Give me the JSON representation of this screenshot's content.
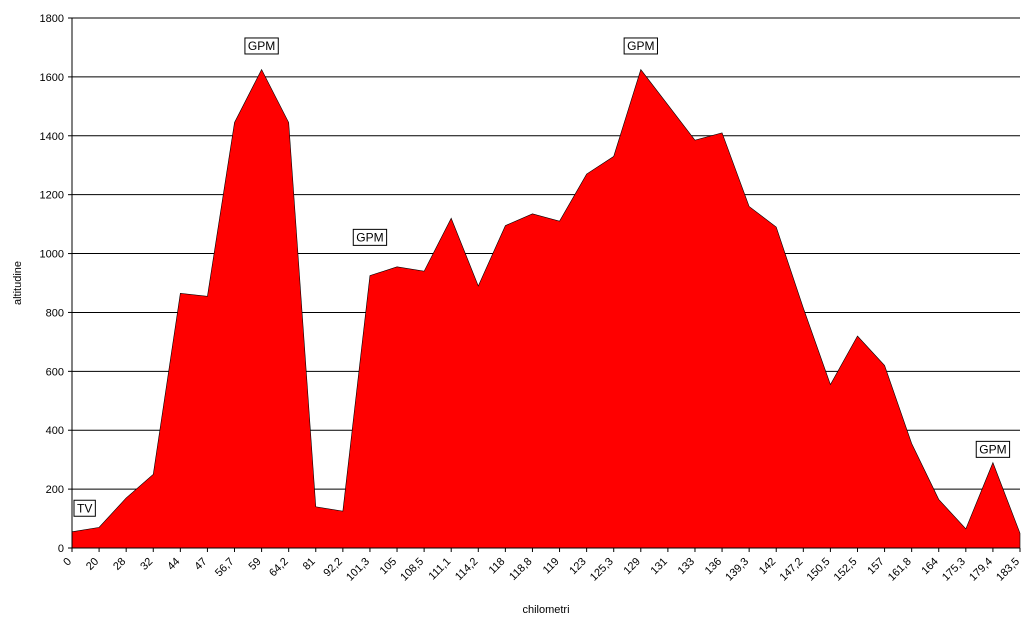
{
  "chart_data": {
    "type": "area",
    "title": "",
    "xlabel": "chilometri",
    "ylabel": "altitudine",
    "ylim": [
      0,
      1800
    ],
    "yticks": [
      0,
      200,
      400,
      600,
      800,
      1000,
      1200,
      1400,
      1600,
      1800
    ],
    "grid": true,
    "legend": "none",
    "categories": [
      "0",
      "20",
      "28",
      "32",
      "44",
      "47",
      "56,7",
      "59",
      "64,2",
      "81",
      "92,2",
      "101,3",
      "105",
      "108,5",
      "111,1",
      "114,2",
      "118",
      "118,8",
      "119",
      "123",
      "125,3",
      "129",
      "131",
      "133",
      "136",
      "139,3",
      "142",
      "147,2",
      "150,5",
      "152,5",
      "157",
      "161,8",
      "164",
      "175,3",
      "179,4",
      "183,5"
    ],
    "series": [
      {
        "color": "#ff0000",
        "values": [
          55,
          70,
          170,
          250,
          865,
          855,
          1445,
          1625,
          1445,
          140,
          125,
          925,
          955,
          940,
          1120,
          890,
          1095,
          1135,
          1110,
          1270,
          1330,
          1625,
          1505,
          1385,
          1410,
          1160,
          1090,
          815,
          555,
          720,
          620,
          355,
          165,
          65,
          290,
          50
        ]
      }
    ],
    "annotations": [
      {
        "text": "TV",
        "category": "0",
        "y": 135
      },
      {
        "text": "GPM",
        "category": "59",
        "y": 1705
      },
      {
        "text": "GPM",
        "category": "101,3",
        "y": 1055
      },
      {
        "text": "GPM",
        "category": "129",
        "y": 1705
      },
      {
        "text": "GPM",
        "category": "179,4",
        "y": 335
      }
    ]
  }
}
